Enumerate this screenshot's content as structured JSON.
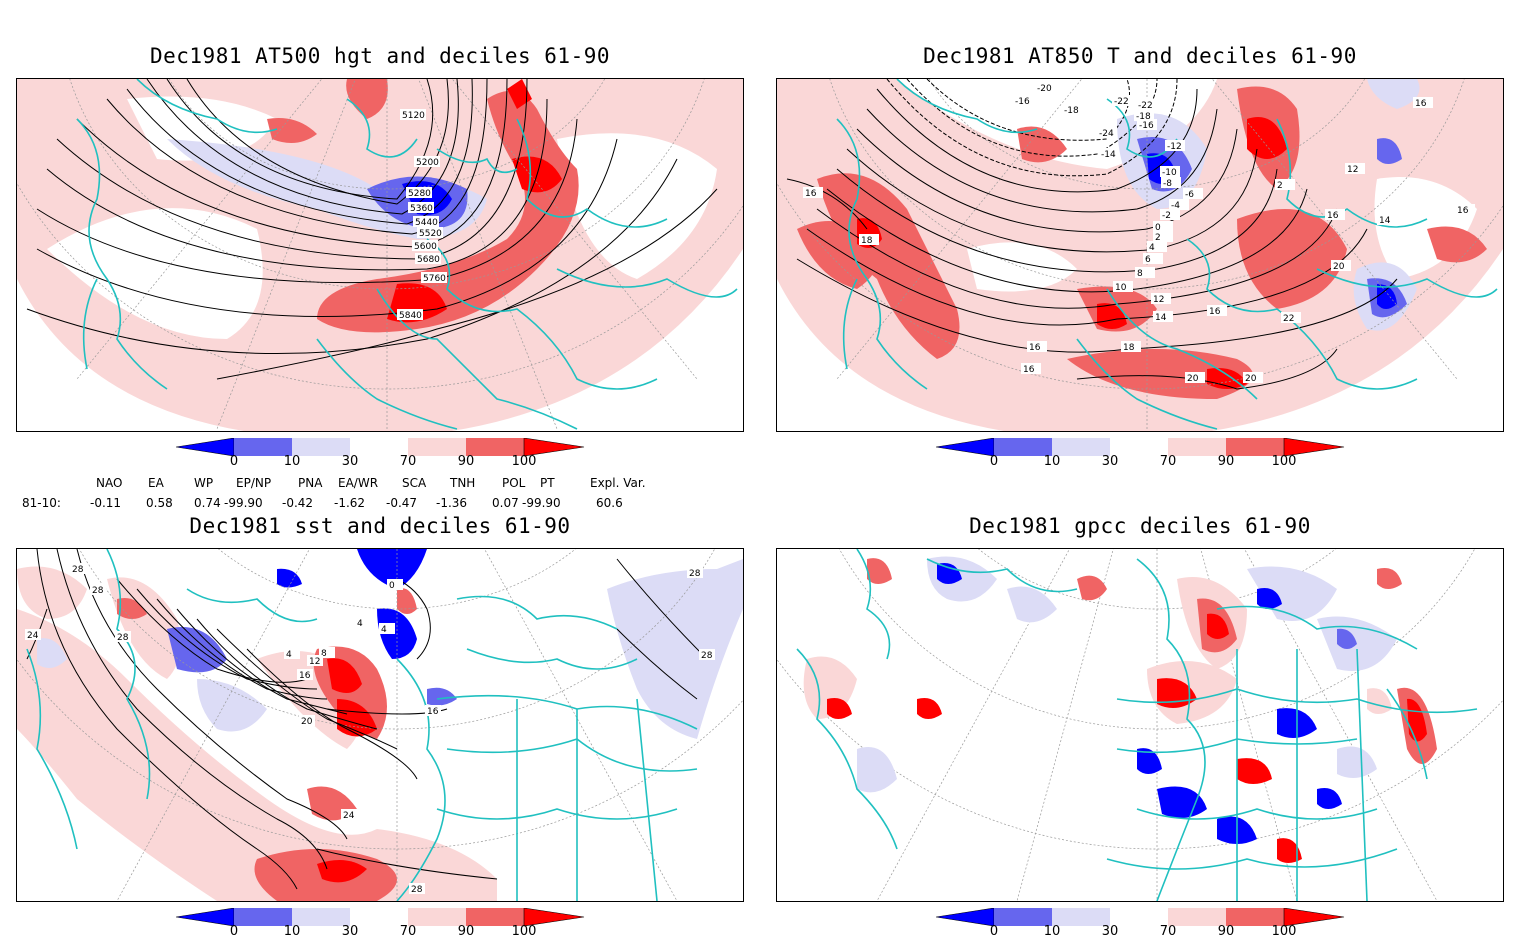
{
  "panels": [
    {
      "id": "p1",
      "title": "Dec1981 AT500 hgt and deciles 61-90",
      "contour_labels": [
        "5120",
        "5200",
        "5280",
        "5360",
        "5440",
        "5520",
        "5600",
        "5680",
        "5760",
        "5840"
      ]
    },
    {
      "id": "p2",
      "title": "Dec1981 AT850 T and deciles 61-90",
      "contour_labels": [
        "-20",
        "-16",
        "-18",
        "-22",
        "-22",
        "-18",
        "-16",
        "-24",
        "-14",
        "-12",
        "-10",
        "-8",
        "-6",
        "-4",
        "-2",
        "0",
        "2",
        "4",
        "6",
        "8",
        "10",
        "12",
        "14",
        "16",
        "16",
        "16",
        "16",
        "18",
        "18",
        "20",
        "20",
        "20",
        "22",
        "2",
        "12",
        "14",
        "16",
        "16",
        "16"
      ]
    },
    {
      "id": "p3",
      "title": "Dec1981 sst and deciles 61-90",
      "contour_labels": [
        "28",
        "28",
        "24",
        "28",
        "28",
        "0",
        "4",
        "4",
        "4",
        "8",
        "12",
        "16",
        "16",
        "20",
        "24",
        "28",
        "28"
      ]
    },
    {
      "id": "p4",
      "title": "Dec1981 gpcc deciles 61-90",
      "contour_labels": []
    }
  ],
  "colorbar": {
    "ticks": [
      "0",
      "10",
      "30",
      "70",
      "90",
      "100"
    ],
    "colors": [
      "#0000ff",
      "#6666ee",
      "#dcdcf6",
      "#ffffff",
      "#fad7d7",
      "#f06464",
      "#ff0000"
    ]
  },
  "indices": {
    "headers": [
      "NAO",
      "EA",
      "WP",
      "EP/NP",
      "PNA",
      "EA/WR",
      "SCA",
      "TNH",
      "POL",
      "PT",
      "Expl. Var."
    ],
    "row_label": "81-10:",
    "values": [
      "-0.11",
      "0.58",
      "0.74",
      "-99.90",
      "-0.42",
      "-1.62",
      "-0.47",
      "-1.36",
      "0.07",
      "-99.90",
      "60.6"
    ]
  },
  "colors": {
    "coast": "#20c0c0",
    "contour": "#000000",
    "grid": "#999999",
    "blue_dark": "#0000ff",
    "blue_mid": "#6666ee",
    "blue_light": "#dcdcf6",
    "red_light": "#fad7d7",
    "red_mid": "#f06464",
    "red_dark": "#ff0000"
  }
}
